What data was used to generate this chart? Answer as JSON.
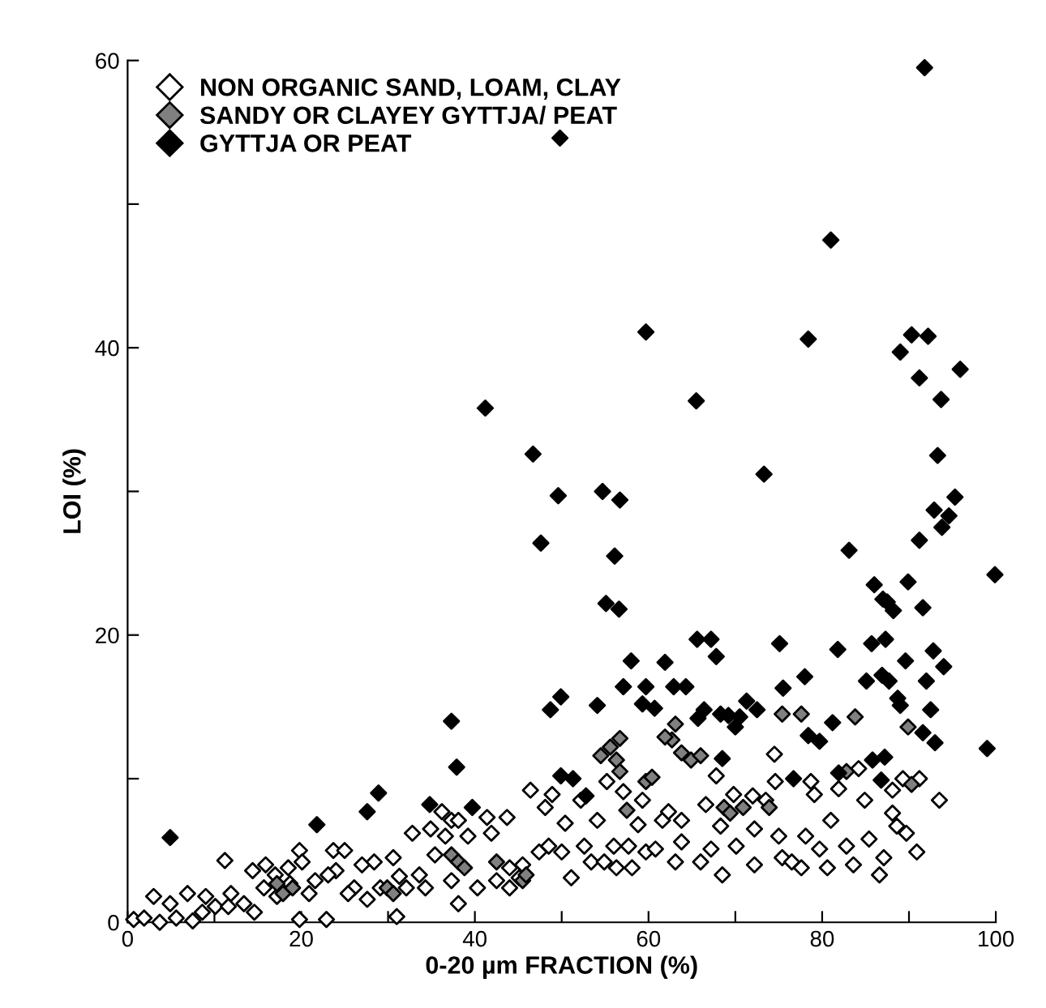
{
  "chart_data": {
    "type": "scatter",
    "xlabel": "0-20 µm FRACTION (%)",
    "ylabel": "LOI (%)",
    "xlim": [
      0,
      100
    ],
    "ylim": [
      0,
      60
    ],
    "xticks": [
      0,
      {
        "value": 10,
        "label": null
      },
      20,
      {
        "value": 30,
        "label": null
      },
      40,
      {
        "value": 50,
        "label": null
      },
      60,
      {
        "value": 70,
        "label": null
      },
      80,
      {
        "value": 90,
        "label": null
      },
      100
    ],
    "yticks": [
      0,
      {
        "value": 10,
        "label": null
      },
      20,
      {
        "value": 30,
        "label": null
      },
      40,
      {
        "value": 50,
        "label": null
      },
      60
    ],
    "grid": false,
    "legend": "top left",
    "marker": "diamond",
    "series": [
      {
        "name": "NON ORGANIC SAND, LOAM, CLAY",
        "color": "#ffffff",
        "x": [
          3.0,
          4.9,
          6.9,
          9.0,
          11.2,
          11.9,
          14.4,
          15.9,
          17.0,
          18.5,
          19.8,
          20.1,
          20.9,
          19.8,
          22.9,
          23.7,
          25.0,
          24.0,
          26.1,
          27.0,
          28.4,
          27.6,
          30.6,
          31.0,
          31.3,
          32.8,
          33.6,
          34.9,
          35.4,
          36.2,
          36.6,
          37.3,
          38.1,
          39.2,
          41.4,
          41.9,
          43.7,
          44.0,
          45.5,
          46.4,
          48.1,
          48.9,
          47.4,
          48.5,
          50.0,
          51.1,
          50.4,
          52.2,
          52.6,
          53.4,
          54.1,
          54.9,
          55.2,
          56.0,
          56.3,
          57.1,
          57.7,
          58.1,
          58.8,
          59.3,
          59.7,
          60.8,
          61.6,
          62.3,
          63.1,
          63.8,
          63.8,
          66.0,
          66.6,
          67.2,
          67.8,
          68.5,
          68.3,
          69.8,
          70.1,
          72.0,
          72.2,
          72.2,
          73.5,
          74.5,
          74.6,
          75.0,
          75.4,
          76.5,
          77.6,
          78.1,
          78.7,
          79.1,
          79.7,
          80.6,
          81.0,
          81.9,
          82.8,
          83.6,
          84.2,
          84.9,
          85.4,
          86.6,
          87.1,
          88.1,
          88.6,
          89.3,
          89.7,
          90.9,
          91.2,
          93.5,
          88.1,
          0.7,
          1.9,
          3.7,
          5.6,
          7.5,
          8.6,
          10.1,
          11.6,
          13.4,
          14.6,
          15.7,
          17.2,
          18.7,
          21.6,
          23.1,
          25.4,
          29.1,
          32.1,
          34.3,
          37.3,
          38.1,
          40.3,
          42.5,
          44.0,
          45.1
        ],
        "values": [
          1.8,
          1.3,
          2.0,
          1.8,
          4.3,
          2.0,
          3.6,
          4.0,
          3.3,
          3.8,
          5.0,
          4.2,
          2.0,
          0.2,
          0.2,
          5.0,
          5.0,
          3.6,
          2.4,
          4.0,
          4.2,
          1.6,
          4.5,
          0.4,
          3.2,
          6.2,
          3.3,
          6.5,
          4.7,
          7.7,
          6.0,
          7.1,
          7.1,
          6.0,
          7.3,
          6.2,
          7.3,
          3.8,
          4.0,
          9.2,
          8.0,
          8.9,
          4.9,
          5.3,
          4.9,
          3.1,
          6.9,
          8.5,
          5.3,
          4.2,
          7.1,
          4.2,
          9.8,
          5.3,
          3.8,
          9.1,
          5.3,
          3.8,
          6.8,
          8.5,
          4.9,
          5.1,
          7.1,
          7.7,
          4.2,
          7.1,
          5.6,
          4.2,
          8.2,
          5.1,
          10.2,
          3.3,
          6.7,
          8.9,
          5.3,
          8.8,
          6.5,
          4.0,
          8.5,
          11.7,
          9.8,
          6.0,
          4.5,
          4.2,
          3.8,
          6.0,
          9.8,
          8.9,
          5.1,
          3.8,
          7.1,
          9.3,
          5.3,
          4.0,
          10.7,
          8.5,
          5.8,
          3.3,
          4.5,
          7.6,
          6.7,
          10.0,
          6.2,
          4.9,
          10.0,
          8.5,
          9.2,
          0.2,
          0.3,
          0.0,
          0.3,
          0.1,
          0.7,
          1.1,
          1.1,
          1.3,
          0.7,
          2.4,
          1.8,
          2.7,
          2.9,
          3.3,
          2.0,
          2.4,
          2.4,
          2.4,
          2.9,
          1.3,
          2.4,
          2.9,
          2.4,
          3.1
        ]
      },
      {
        "name": "SANDY OR CLAYEY GYTTJA/ PEAT",
        "color": "#808080",
        "x": [
          17.9,
          19.0,
          17.2,
          29.9,
          30.6,
          37.3,
          38.1,
          38.8,
          42.5,
          45.5,
          45.9,
          62.7,
          63.1,
          63.8,
          64.9,
          66.0,
          55.6,
          56.3,
          56.7,
          61.9,
          75.4,
          77.6,
          83.8,
          68.7,
          69.4,
          70.9,
          73.9,
          76.5,
          82.8,
          89.9,
          90.3,
          87.3,
          57.5,
          59.7,
          60.4,
          56.7,
          54.5
        ],
        "values": [
          2.0,
          2.4,
          2.7,
          2.4,
          2.0,
          4.7,
          4.2,
          3.8,
          4.2,
          2.9,
          3.3,
          12.7,
          13.8,
          11.8,
          11.3,
          11.6,
          12.2,
          11.3,
          12.8,
          12.9,
          14.5,
          14.5,
          14.3,
          8.0,
          7.6,
          8.0,
          8.0,
          null,
          10.5,
          13.6,
          9.6,
          null,
          7.8,
          9.8,
          10.1,
          10.5,
          11.6
        ]
      },
      {
        "name": "GYTTJA OR PEAT",
        "color": "#000000",
        "x": [
          4.9,
          21.8,
          27.6,
          28.9,
          34.8,
          37.3,
          37.9,
          39.7,
          41.2,
          46.7,
          47.6,
          49.6,
          49.8,
          48.7,
          49.9,
          49.9,
          51.3,
          52.8,
          54.1,
          54.7,
          55.1,
          56.1,
          56.6,
          56.7,
          57.1,
          58.0,
          59.7,
          59.7,
          59.3,
          60.7,
          61.9,
          62.9,
          64.3,
          65.5,
          65.6,
          67.2,
          67.8,
          65.7,
          66.4,
          68.3,
          69.2,
          70.0,
          70.5,
          71.3,
          72.5,
          68.5,
          73.3,
          75.1,
          75.5,
          78.0,
          78.4,
          78.4,
          76.7,
          79.7,
          81.0,
          81.2,
          81.8,
          83.1,
          81.9,
          86.0,
          85.1,
          85.7,
          87.3,
          87.0,
          87.5,
          88.2,
          86.9,
          87.7,
          85.8,
          87.2,
          86.8,
          88.7,
          89.0,
          90.3,
          91.2,
          92.2,
          91.8,
          93.7,
          93.3,
          92.9,
          91.2,
          93.8,
          94.6,
          95.3,
          95.9,
          89.9,
          91.6,
          89.6,
          92.8,
          92.0,
          94.0,
          89.0,
          91.6,
          92.5,
          93.0,
          99.0,
          99.9
        ],
        "values": [
          5.9,
          6.8,
          7.7,
          9.0,
          8.2,
          14.0,
          10.8,
          8.0,
          35.8,
          32.6,
          26.4,
          29.7,
          54.6,
          14.8,
          15.7,
          10.2,
          10.0,
          8.8,
          15.1,
          30.0,
          22.2,
          25.5,
          21.8,
          29.4,
          16.4,
          18.2,
          41.1,
          16.4,
          15.2,
          14.9,
          18.1,
          16.4,
          16.4,
          36.3,
          19.7,
          19.7,
          18.5,
          14.2,
          14.8,
          14.5,
          14.4,
          13.6,
          14.3,
          15.4,
          14.8,
          11.4,
          31.2,
          19.4,
          16.3,
          17.1,
          40.6,
          13.0,
          10.0,
          12.6,
          47.5,
          13.9,
          19.0,
          25.9,
          10.4,
          23.5,
          16.8,
          19.4,
          19.7,
          22.5,
          22.3,
          21.7,
          17.2,
          16.8,
          11.3,
          11.5,
          9.9,
          15.6,
          39.7,
          40.9,
          37.9,
          40.8,
          59.5,
          36.4,
          32.5,
          28.7,
          26.6,
          27.5,
          28.3,
          29.6,
          38.5,
          23.7,
          21.9,
          18.2,
          18.9,
          16.8,
          17.8,
          15.1,
          13.2,
          14.8,
          12.5,
          12.1,
          24.2
        ]
      }
    ]
  }
}
